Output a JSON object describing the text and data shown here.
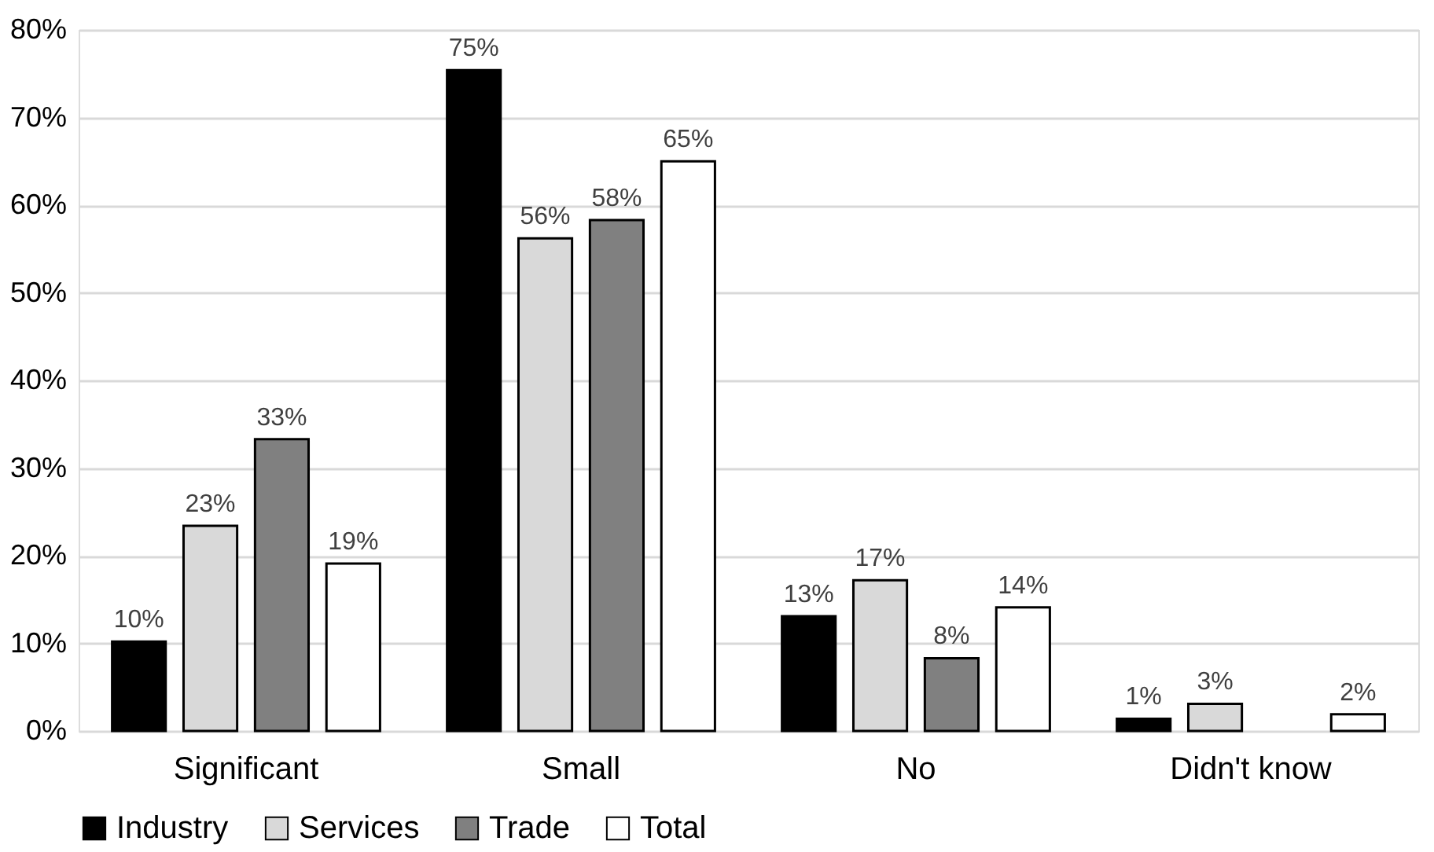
{
  "chart_data": {
    "type": "bar",
    "categories": [
      "Significant",
      "Small",
      "No",
      "Didn't know"
    ],
    "series": [
      {
        "name": "Industry",
        "color": "#000000",
        "values": [
          10.2,
          75.4,
          13.1,
          1.4
        ],
        "value_labels": [
          "10%",
          "75%",
          "13%",
          "1%"
        ]
      },
      {
        "name": "Services",
        "color": "#d9d9d9",
        "values": [
          23.4,
          56.2,
          17.2,
          3.1
        ],
        "value_labels": [
          "23%",
          "56%",
          "17%",
          "3%"
        ]
      },
      {
        "name": "Trade",
        "color": "#808080",
        "values": [
          33.3,
          58.3,
          8.3,
          null
        ],
        "value_labels": [
          "33%",
          "58%",
          "8%",
          null
        ]
      },
      {
        "name": "Total",
        "color": "#ffffff",
        "values": [
          19.1,
          65.0,
          14.1,
          1.9
        ],
        "value_labels": [
          "19%",
          "65%",
          "14%",
          "2%"
        ]
      }
    ],
    "ylim": [
      0,
      80
    ],
    "yticks": [
      {
        "value": 0,
        "label": "0%"
      },
      {
        "value": 10,
        "label": "10%"
      },
      {
        "value": 20,
        "label": "20%"
      },
      {
        "value": 30,
        "label": "30%"
      },
      {
        "value": 40,
        "label": "40%"
      },
      {
        "value": 50,
        "label": "50%"
      },
      {
        "value": 60,
        "label": "60%"
      },
      {
        "value": 70,
        "label": "70%"
      },
      {
        "value": 80,
        "label": "80%"
      }
    ],
    "grid": "y",
    "legend": "bottom"
  }
}
